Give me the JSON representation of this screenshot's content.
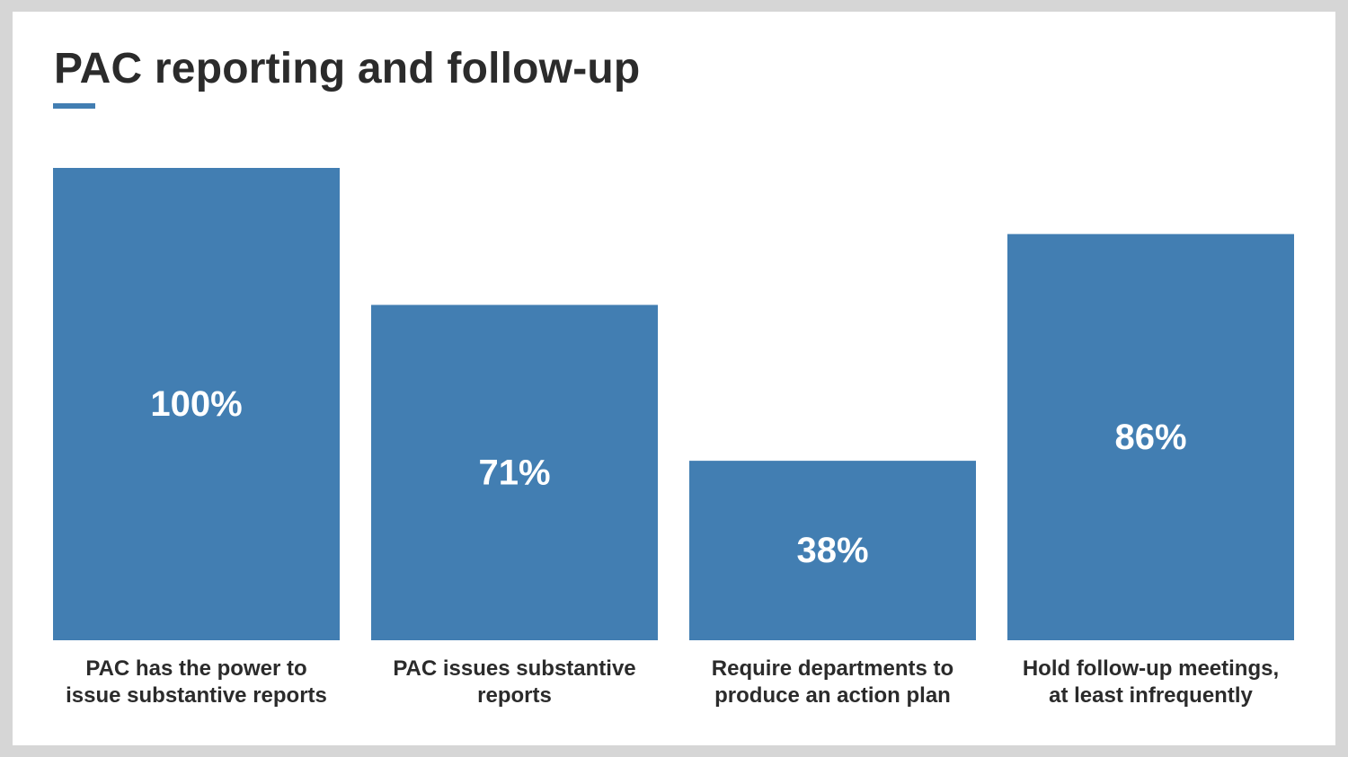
{
  "title": "PAC reporting and follow-up",
  "colors": {
    "bar": "#427eb2",
    "accent": "#427eb2",
    "value_label": "#ffffff",
    "text": "#2b2b2b"
  },
  "chart_data": {
    "type": "bar",
    "title": "PAC reporting and follow-up",
    "categories": [
      "PAC has the power to issue substantive reports",
      "PAC issues substantive reports",
      "Require departments to produce an action plan",
      "Hold follow-up meetings, at least infrequently"
    ],
    "category_lines": [
      [
        "PAC has the power to",
        "issue substantive reports"
      ],
      [
        "PAC issues substantive",
        "reports"
      ],
      [
        "Require departments to",
        "produce an action plan"
      ],
      [
        "Hold follow-up meetings,",
        "at least infrequently"
      ]
    ],
    "values": [
      100,
      71,
      38,
      86
    ],
    "value_labels": [
      "100%",
      "71%",
      "38%",
      "86%"
    ],
    "unit": "%",
    "ylim": [
      0,
      100
    ],
    "grid": false,
    "legend": "none",
    "xlabel": "",
    "ylabel": ""
  }
}
